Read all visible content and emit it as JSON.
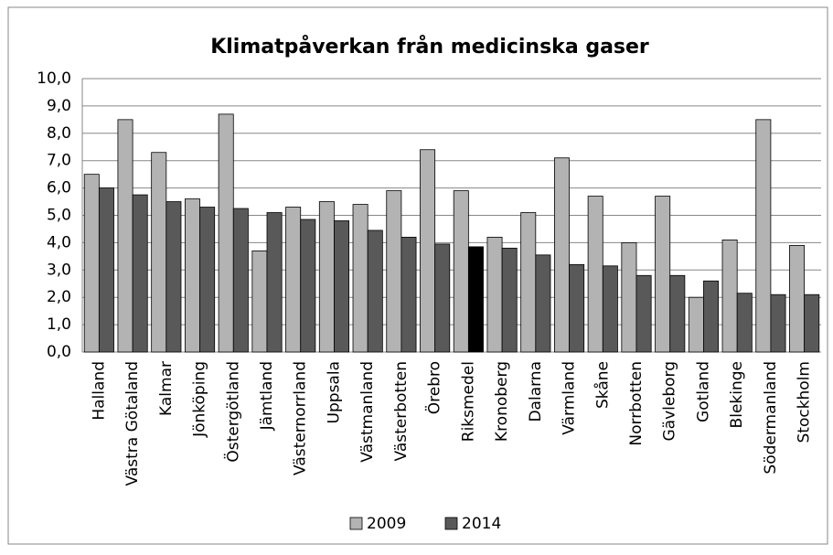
{
  "chart_data": {
    "type": "bar",
    "title": "Klimatpåverkan från medicinska gaser",
    "categories": [
      "Halland",
      "Västra Götaland",
      "Kalmar",
      "Jönköping",
      "Östergötland",
      "Jämtland",
      "Västernorrland",
      "Uppsala",
      "Västmanland",
      "Västerbotten",
      "Örebro",
      "Riksmedel",
      "Kronoberg",
      "Dalarna",
      "Värmland",
      "Skåne",
      "Norrbotten",
      "Gävleborg",
      "Gotland",
      "Blekinge",
      "Södermanland",
      "Stockholm"
    ],
    "series": [
      {
        "name": "2009",
        "color": "#b3b3b3",
        "values": [
          6.5,
          8.5,
          7.3,
          5.6,
          8.7,
          3.7,
          5.3,
          5.5,
          5.4,
          5.9,
          7.4,
          5.9,
          4.2,
          5.1,
          7.1,
          5.7,
          4.0,
          5.7,
          2.0,
          4.1,
          8.5,
          3.9
        ]
      },
      {
        "name": "2014",
        "color": "#595959",
        "colors": [
          "#595959",
          "#595959",
          "#595959",
          "#595959",
          "#595959",
          "#595959",
          "#595959",
          "#595959",
          "#595959",
          "#595959",
          "#595959",
          "#000000",
          "#595959",
          "#595959",
          "#595959",
          "#595959",
          "#595959",
          "#595959",
          "#595959",
          "#595959",
          "#595959",
          "#595959"
        ],
        "values": [
          6.0,
          5.75,
          5.5,
          5.3,
          5.25,
          5.1,
          4.85,
          4.8,
          4.45,
          4.2,
          3.95,
          3.85,
          3.8,
          3.55,
          3.2,
          3.15,
          2.8,
          2.8,
          2.6,
          2.15,
          2.1,
          2.1
        ]
      }
    ],
    "ylim": [
      0,
      10
    ],
    "yticks": [
      {
        "value": 0,
        "label": "0,0"
      },
      {
        "value": 1,
        "label": "1,0"
      },
      {
        "value": 2,
        "label": "2,0"
      },
      {
        "value": 3,
        "label": "3,0"
      },
      {
        "value": 4,
        "label": "4,0"
      },
      {
        "value": 5,
        "label": "5,0"
      },
      {
        "value": 6,
        "label": "6,0"
      },
      {
        "value": 7,
        "label": "7,0"
      },
      {
        "value": 8,
        "label": "8,0"
      },
      {
        "value": 9,
        "label": "9,0"
      },
      {
        "value": 10,
        "label": "10,0"
      }
    ],
    "grid": true,
    "legend": "bottom"
  }
}
